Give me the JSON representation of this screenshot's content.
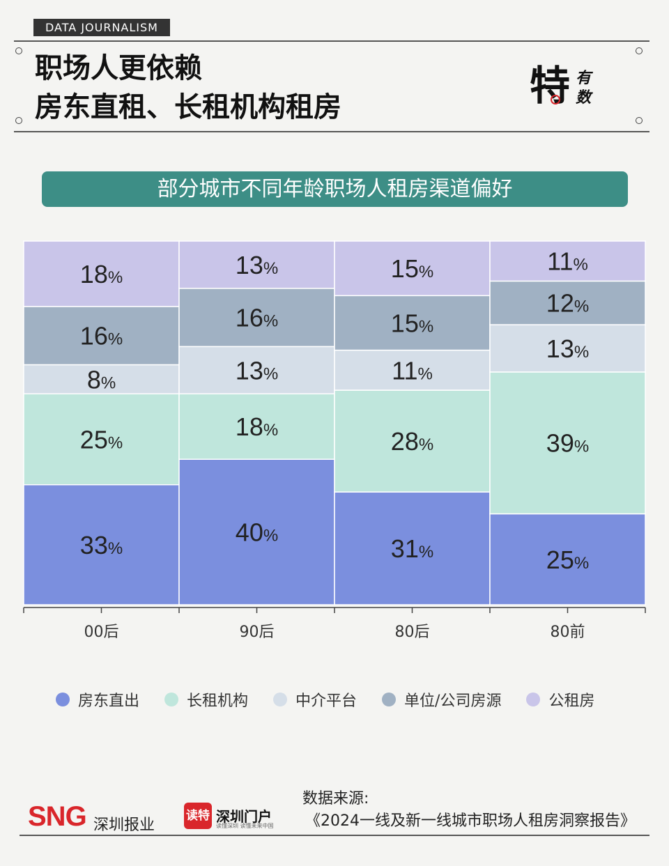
{
  "header": {
    "tag": "DATA JOURNALISM",
    "title_line1": "职场人更依赖",
    "title_line2": "房东直租、长租机构租房",
    "logo_main": "特",
    "logo_side1": "有",
    "logo_side2": "数"
  },
  "banner": "部分城市不同年龄职场人租房渠道偏好",
  "chart_data": {
    "type": "bar",
    "stacked": true,
    "categories": [
      "00后",
      "90后",
      "80后",
      "80前"
    ],
    "series": [
      {
        "name": "房东直出",
        "color": "#7b8fde",
        "values": [
          33,
          40,
          31,
          25
        ]
      },
      {
        "name": "长租机构",
        "color": "#bfe6dc",
        "values": [
          25,
          18,
          28,
          39
        ]
      },
      {
        "name": "中介平台",
        "color": "#d5dee8",
        "values": [
          8,
          13,
          11,
          13
        ]
      },
      {
        "name": "单位/公司房源",
        "color": "#a0b1c3",
        "values": [
          16,
          16,
          15,
          12
        ]
      },
      {
        "name": "公租房",
        "color": "#c9c5e9",
        "values": [
          18,
          13,
          15,
          11
        ]
      }
    ],
    "unit": "%"
  },
  "legend": [
    {
      "label": "房东直出",
      "color": "#7b8fde"
    },
    {
      "label": "长租机构",
      "color": "#bfe6dc"
    },
    {
      "label": "中介平台",
      "color": "#d5dee8"
    },
    {
      "label": "单位/公司房源",
      "color": "#a0b1c3"
    },
    {
      "label": "公租房",
      "color": "#c9c5e9"
    }
  ],
  "footer": {
    "sng": "SNG",
    "sng_sub": "深圳报业",
    "dute": "读特",
    "menhu": "深圳门户",
    "menhu_sub": "读懂深圳 读懂未来中国",
    "source_label": "数据来源:",
    "source_name": "《2024一线及新一线城市职场人租房洞察报告》"
  }
}
